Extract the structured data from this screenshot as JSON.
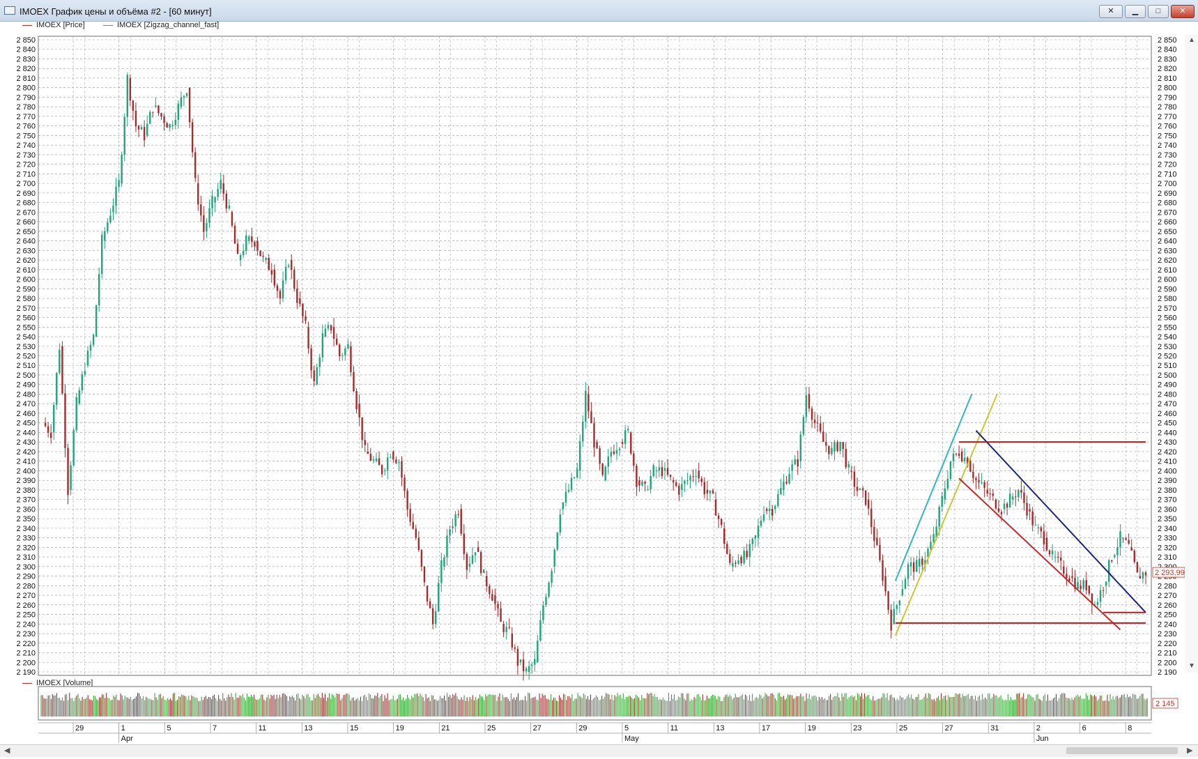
{
  "window": {
    "title": "IMOEX График цены и объёма #2 - [60 минут]",
    "pin_icon": "pin-icon",
    "minimize_icon": "minimize-icon",
    "maximize_icon": "maximize-icon",
    "close_icon": "close-icon"
  },
  "legend": {
    "price": {
      "label": "IMOEX [Price]",
      "color": "#b23232"
    },
    "zigzag": {
      "label": "IMOEX [Zigzag_channel_fast]",
      "color": "#808080"
    },
    "volume": {
      "label": "IMOEX [Volume]",
      "color": "#b23232"
    }
  },
  "chart_data": {
    "type": "candlestick",
    "price_axis": {
      "min": 2190,
      "max": 2850,
      "step": 10,
      "grid": true
    },
    "time_axis": {
      "day_labels": [
        "29",
        "1",
        "5",
        "7",
        "11",
        "13",
        "15",
        "19",
        "21",
        "25",
        "27",
        "29",
        "5",
        "11",
        "13",
        "17",
        "19",
        "23",
        "25",
        "27",
        "31",
        "2",
        "6",
        "8"
      ],
      "month_labels": [
        "Apr",
        "May",
        "Jun"
      ],
      "grid": true
    },
    "current_price": "2 293,99",
    "current_volume": "2 145",
    "colors": {
      "up": "#1fa37a",
      "down": "#a52a2a",
      "grid": "#9a9a9a",
      "volume_up": "#2e9a2e",
      "volume_down": "#8b1a1a"
    },
    "path_points": [
      [
        0,
        2450
      ],
      [
        2,
        2440
      ],
      [
        4,
        2530
      ],
      [
        6,
        2380
      ],
      [
        8,
        2470
      ],
      [
        10,
        2510
      ],
      [
        12,
        2540
      ],
      [
        14,
        2640
      ],
      [
        16,
        2670
      ],
      [
        18,
        2700
      ],
      [
        20,
        2810
      ],
      [
        22,
        2760
      ],
      [
        24,
        2750
      ],
      [
        26,
        2780
      ],
      [
        28,
        2770
      ],
      [
        30,
        2760
      ],
      [
        32,
        2780
      ],
      [
        34,
        2800
      ],
      [
        36,
        2700
      ],
      [
        38,
        2650
      ],
      [
        40,
        2680
      ],
      [
        42,
        2700
      ],
      [
        44,
        2670
      ],
      [
        46,
        2620
      ],
      [
        48,
        2640
      ],
      [
        50,
        2640
      ],
      [
        52,
        2620
      ],
      [
        54,
        2610
      ],
      [
        56,
        2580
      ],
      [
        58,
        2620
      ],
      [
        60,
        2580
      ],
      [
        62,
        2550
      ],
      [
        64,
        2490
      ],
      [
        66,
        2540
      ],
      [
        68,
        2550
      ],
      [
        70,
        2520
      ],
      [
        72,
        2530
      ],
      [
        74,
        2470
      ],
      [
        76,
        2420
      ],
      [
        78,
        2410
      ],
      [
        80,
        2400
      ],
      [
        82,
        2420
      ],
      [
        84,
        2410
      ],
      [
        86,
        2360
      ],
      [
        88,
        2330
      ],
      [
        90,
        2280
      ],
      [
        92,
        2240
      ],
      [
        94,
        2300
      ],
      [
        96,
        2340
      ],
      [
        98,
        2360
      ],
      [
        100,
        2300
      ],
      [
        102,
        2320
      ],
      [
        104,
        2290
      ],
      [
        106,
        2270
      ],
      [
        108,
        2240
      ],
      [
        110,
        2230
      ],
      [
        112,
        2200
      ],
      [
        114,
        2190
      ],
      [
        116,
        2200
      ],
      [
        118,
        2260
      ],
      [
        120,
        2300
      ],
      [
        122,
        2360
      ],
      [
        124,
        2380
      ],
      [
        126,
        2400
      ],
      [
        128,
        2480
      ],
      [
        130,
        2430
      ],
      [
        132,
        2390
      ],
      [
        134,
        2420
      ],
      [
        136,
        2430
      ],
      [
        138,
        2440
      ],
      [
        140,
        2390
      ],
      [
        142,
        2380
      ],
      [
        144,
        2400
      ],
      [
        146,
        2400
      ],
      [
        148,
        2390
      ],
      [
        150,
        2380
      ],
      [
        152,
        2390
      ],
      [
        154,
        2400
      ],
      [
        156,
        2380
      ],
      [
        158,
        2370
      ],
      [
        160,
        2340
      ],
      [
        162,
        2300
      ],
      [
        164,
        2310
      ],
      [
        166,
        2310
      ],
      [
        168,
        2330
      ],
      [
        170,
        2360
      ],
      [
        172,
        2360
      ],
      [
        174,
        2380
      ],
      [
        176,
        2400
      ],
      [
        178,
        2410
      ],
      [
        180,
        2480
      ],
      [
        182,
        2450
      ],
      [
        184,
        2430
      ],
      [
        186,
        2420
      ],
      [
        188,
        2430
      ],
      [
        190,
        2400
      ],
      [
        192,
        2380
      ],
      [
        194,
        2370
      ],
      [
        196,
        2330
      ],
      [
        198,
        2290
      ],
      [
        200,
        2240
      ],
      [
        202,
        2270
      ],
      [
        204,
        2300
      ],
      [
        206,
        2300
      ],
      [
        208,
        2310
      ],
      [
        210,
        2330
      ],
      [
        212,
        2370
      ],
      [
        214,
        2410
      ],
      [
        216,
        2420
      ],
      [
        218,
        2410
      ],
      [
        220,
        2390
      ],
      [
        222,
        2380
      ],
      [
        224,
        2370
      ],
      [
        226,
        2360
      ],
      [
        228,
        2370
      ],
      [
        230,
        2380
      ],
      [
        232,
        2360
      ],
      [
        234,
        2340
      ],
      [
        236,
        2330
      ],
      [
        238,
        2310
      ],
      [
        240,
        2300
      ],
      [
        242,
        2290
      ],
      [
        244,
        2280
      ],
      [
        246,
        2280
      ],
      [
        248,
        2260
      ],
      [
        250,
        2280
      ],
      [
        252,
        2310
      ],
      [
        254,
        2330
      ],
      [
        256,
        2320
      ],
      [
        258,
        2290
      ],
      [
        260,
        2294
      ]
    ],
    "trend_lines": [
      {
        "name": "cyan-channel-line",
        "color": "#2fb7c2",
        "from": [
          201,
          2285
        ],
        "to": [
          219,
          2480
        ]
      },
      {
        "name": "yellow-channel-line",
        "color": "#c8c832",
        "from": [
          201,
          2228
        ],
        "to": [
          225,
          2480
        ]
      },
      {
        "name": "blue-downtrend-line",
        "color": "#1a237e",
        "from": [
          220,
          2442
        ],
        "to": [
          260,
          2252
        ]
      },
      {
        "name": "red-downtrend-line",
        "color": "#c62828",
        "from": [
          216,
          2392
        ],
        "to": [
          254,
          2234
        ]
      },
      {
        "name": "red-resistance-line",
        "color": "#b71c1c",
        "from": [
          216,
          2430
        ],
        "to": [
          260,
          2430
        ]
      },
      {
        "name": "red-support-line",
        "color": "#b71c1c",
        "from": [
          201,
          2241
        ],
        "to": [
          260,
          2241
        ]
      },
      {
        "name": "red-short-support-line",
        "color": "#b71c1c",
        "from": [
          250,
          2252
        ],
        "to": [
          260,
          2252
        ]
      }
    ]
  }
}
